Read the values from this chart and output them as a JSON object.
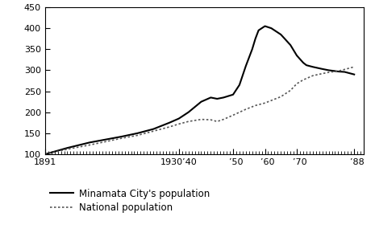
{
  "title": "",
  "xlabel": "",
  "ylabel": "",
  "ylim": [
    100,
    450
  ],
  "yticks": [
    100,
    150,
    200,
    250,
    300,
    350,
    400,
    450
  ],
  "xtick_labels": [
    "1891",
    "1930’40",
    "  ’50",
    "  ’60",
    "  ’70",
    "  ’88"
  ],
  "xtick_positions": [
    1891,
    1933,
    1950,
    1960,
    1970,
    1988
  ],
  "xlim": [
    1891,
    1991
  ],
  "minamata": {
    "years": [
      1891,
      1898,
      1905,
      1910,
      1915,
      1920,
      1925,
      1930,
      1933,
      1936,
      1940,
      1943,
      1945,
      1947,
      1950,
      1952,
      1954,
      1956,
      1957,
      1958,
      1960,
      1962,
      1965,
      1968,
      1970,
      1972,
      1973,
      1975,
      1978,
      1980,
      1983,
      1985,
      1988
    ],
    "values": [
      100,
      115,
      128,
      135,
      142,
      150,
      160,
      175,
      185,
      200,
      225,
      235,
      232,
      235,
      242,
      265,
      310,
      350,
      375,
      395,
      405,
      400,
      385,
      360,
      335,
      318,
      312,
      308,
      303,
      300,
      297,
      296,
      290
    ]
  },
  "national": {
    "years": [
      1891,
      1898,
      1905,
      1910,
      1915,
      1920,
      1925,
      1930,
      1933,
      1936,
      1940,
      1943,
      1945,
      1947,
      1950,
      1952,
      1954,
      1956,
      1957,
      1958,
      1960,
      1962,
      1965,
      1968,
      1970,
      1972,
      1975,
      1978,
      1980,
      1983,
      1985,
      1988
    ],
    "values": [
      100,
      112,
      122,
      130,
      138,
      145,
      155,
      165,
      172,
      178,
      183,
      182,
      178,
      183,
      193,
      200,
      207,
      213,
      216,
      218,
      222,
      228,
      237,
      252,
      268,
      277,
      287,
      292,
      295,
      298,
      302,
      308
    ]
  },
  "minamata_color": "#000000",
  "national_color": "#555555",
  "background_color": "#ffffff",
  "legend_minamata": "Minamata City's population",
  "legend_national": "National population"
}
